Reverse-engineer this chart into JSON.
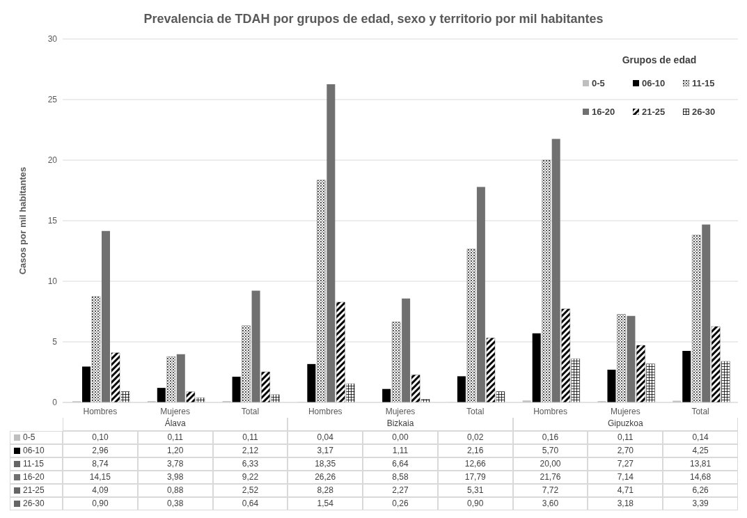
{
  "chart_data": {
    "type": "bar",
    "title": "Prevalencia de TDAH por grupos de edad, sexo y territorio por mil habitantes",
    "ylabel": "Casos por mil habitantes",
    "legend_title": "Grupos de edad",
    "categories": [
      "Hombres",
      "Mujeres",
      "Total",
      "Hombres",
      "Mujeres",
      "Total",
      "Hombres",
      "Mujeres",
      "Total"
    ],
    "annotations": [
      "Álava",
      "Bizkaia",
      "Gipuzkoa"
    ],
    "series": [
      {
        "name": "0-5",
        "color": "#bfbfbf",
        "values": [
          0.1,
          0.11,
          0.11,
          0.04,
          0.0,
          0.02,
          0.16,
          0.11,
          0.14
        ],
        "value_labels": [
          "0,10",
          "0,11",
          "0,11",
          "0,04",
          "0,00",
          "0,02",
          "0,16",
          "0,11",
          "0,14"
        ]
      },
      {
        "name": "06-10",
        "color": "#000000",
        "values": [
          2.96,
          1.2,
          2.12,
          3.17,
          1.11,
          2.16,
          5.7,
          2.7,
          4.25
        ],
        "value_labels": [
          "2,96",
          "1,20",
          "2,12",
          "3,17",
          "1,11",
          "2,16",
          "5,70",
          "2,70",
          "4,25"
        ]
      },
      {
        "name": "11-15",
        "color": "#000000",
        "values": [
          8.74,
          3.78,
          6.33,
          18.35,
          6.64,
          12.66,
          20.0,
          7.27,
          13.81
        ],
        "value_labels": [
          "8,74",
          "3,78",
          "6,33",
          "18,35",
          "6,64",
          "12,66",
          "20,00",
          "7,27",
          "13,81"
        ]
      },
      {
        "name": "16-20",
        "color": "#707070",
        "values": [
          14.15,
          3.98,
          9.22,
          26.26,
          8.58,
          17.79,
          21.76,
          7.14,
          14.68
        ],
        "value_labels": [
          "14,15",
          "3,98",
          "9,22",
          "26,26",
          "8,58",
          "17,79",
          "21,76",
          "7,14",
          "14,68"
        ]
      },
      {
        "name": "21-25",
        "color": "#000000",
        "values": [
          4.09,
          0.88,
          2.52,
          8.28,
          2.27,
          5.31,
          7.72,
          4.71,
          6.26
        ],
        "value_labels": [
          "4,09",
          "0,88",
          "2,52",
          "8,28",
          "2,27",
          "5,31",
          "7,72",
          "4,71",
          "6,26"
        ]
      },
      {
        "name": "26-30",
        "color": "#000000",
        "values": [
          0.9,
          0.38,
          0.64,
          1.54,
          0.26,
          0.9,
          3.6,
          3.18,
          3.39
        ],
        "value_labels": [
          "0,90",
          "0,38",
          "0,64",
          "1,54",
          "0,26",
          "0,90",
          "3,60",
          "3,18",
          "3,39"
        ]
      }
    ],
    "ylim": [
      0,
      30
    ],
    "yticks": [
      0,
      5,
      10,
      15,
      20,
      25,
      30
    ],
    "grid": "y",
    "legend": "top right"
  }
}
